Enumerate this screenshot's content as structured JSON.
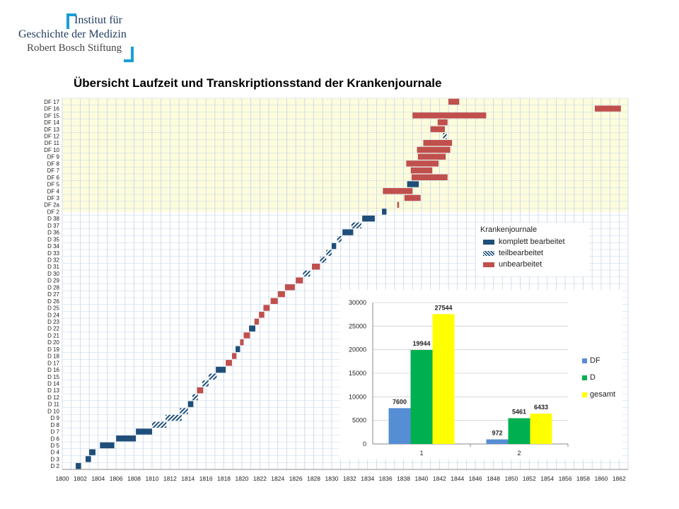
{
  "logo": {
    "line1": "Institut für",
    "line2": "Geschichte der Medizin",
    "line3": "Robert Bosch Stiftung"
  },
  "title": "Übersicht Laufzeit und Transkriptionsstand der Krankenjournale",
  "legend": {
    "title": "Krankenjournale",
    "items": [
      {
        "label": "komplett bearbeitet",
        "key": "complete"
      },
      {
        "label": "teilbearbeitet",
        "key": "partial"
      },
      {
        "label": "unbearbeitet",
        "key": "open"
      }
    ]
  },
  "colors": {
    "complete": "#1f4e79",
    "partial": "#1f4e79",
    "open": "#c0504d",
    "df_background": "#fdfcdc",
    "grid": "#c5d5e8",
    "series_df": "#558ed5",
    "series_d": "#00b050",
    "series_gesamt": "#ffff00"
  },
  "chart_data": [
    {
      "type": "bar",
      "subtype": "gantt",
      "title": "Übersicht Laufzeit und Transkriptionsstand der Krankenjournale",
      "x_ticks": [
        1800,
        1802,
        1804,
        1806,
        1808,
        1810,
        1812,
        1814,
        1816,
        1818,
        1820,
        1822,
        1824,
        1826,
        1828,
        1830,
        1832,
        1834,
        1836,
        1838,
        1840,
        1842,
        1844,
        1846,
        1848,
        1850,
        1852,
        1854,
        1856,
        1858,
        1860,
        1862
      ],
      "xlim": [
        1800,
        1863
      ],
      "grid": true,
      "legend_position": "right",
      "rows": [
        {
          "label": "DF 17",
          "start": 1843.0,
          "end": 1844.2,
          "status": "open"
        },
        {
          "label": "DF 16",
          "start": 1859.3,
          "end": 1862.2,
          "status": "open"
        },
        {
          "label": "DF 15",
          "start": 1839.0,
          "end": 1847.2,
          "status": "open"
        },
        {
          "label": "DF 14",
          "start": 1841.8,
          "end": 1842.9,
          "status": "open"
        },
        {
          "label": "DF 13",
          "start": 1841.0,
          "end": 1842.6,
          "status": "open"
        },
        {
          "label": "DF 12",
          "start": 1842.4,
          "end": 1842.8,
          "status": "partial"
        },
        {
          "label": "DF 11",
          "start": 1840.2,
          "end": 1843.4,
          "status": "open"
        },
        {
          "label": "DF 10",
          "start": 1839.5,
          "end": 1843.2,
          "status": "open"
        },
        {
          "label": "DF 9",
          "start": 1839.6,
          "end": 1842.7,
          "status": "open"
        },
        {
          "label": "DF 8",
          "start": 1838.3,
          "end": 1841.9,
          "status": "open"
        },
        {
          "label": "DF 7",
          "start": 1838.8,
          "end": 1841.2,
          "status": "open"
        },
        {
          "label": "DF 6",
          "start": 1838.9,
          "end": 1842.9,
          "status": "open"
        },
        {
          "label": "DF 5",
          "start": 1838.4,
          "end": 1839.7,
          "status": "complete"
        },
        {
          "label": "DF 4",
          "start": 1835.7,
          "end": 1839.0,
          "status": "open"
        },
        {
          "label": "DF 3",
          "start": 1838.1,
          "end": 1839.9,
          "status": "open"
        },
        {
          "label": "DF 2a",
          "start": 1837.3,
          "end": 1837.5,
          "status": "open"
        },
        {
          "label": "DF 2",
          "start": 1835.6,
          "end": 1836.1,
          "status": "complete"
        },
        {
          "label": "D 38",
          "start": 1833.4,
          "end": 1834.8,
          "status": "complete"
        },
        {
          "label": "D 37",
          "start": 1832.2,
          "end": 1833.3,
          "status": "partial"
        },
        {
          "label": "D 36",
          "start": 1831.2,
          "end": 1832.4,
          "status": "complete"
        },
        {
          "label": "D 35",
          "start": 1830.6,
          "end": 1831.1,
          "status": "partial"
        },
        {
          "label": "D 34",
          "start": 1830.0,
          "end": 1830.5,
          "status": "complete"
        },
        {
          "label": "D 33",
          "start": 1829.4,
          "end": 1830.0,
          "status": "partial"
        },
        {
          "label": "D 32",
          "start": 1828.7,
          "end": 1829.4,
          "status": "partial"
        },
        {
          "label": "D 31",
          "start": 1827.8,
          "end": 1828.7,
          "status": "open"
        },
        {
          "label": "D 30",
          "start": 1826.8,
          "end": 1827.6,
          "status": "partial"
        },
        {
          "label": "D 29",
          "start": 1826.0,
          "end": 1826.8,
          "status": "open"
        },
        {
          "label": "D 28",
          "start": 1824.8,
          "end": 1825.9,
          "status": "open"
        },
        {
          "label": "D 27",
          "start": 1824.0,
          "end": 1824.8,
          "status": "open"
        },
        {
          "label": "D 26",
          "start": 1823.2,
          "end": 1824.0,
          "status": "open"
        },
        {
          "label": "D 25",
          "start": 1822.4,
          "end": 1823.1,
          "status": "open"
        },
        {
          "label": "D 24",
          "start": 1821.9,
          "end": 1822.5,
          "status": "open"
        },
        {
          "label": "D 23",
          "start": 1821.4,
          "end": 1821.9,
          "status": "open"
        },
        {
          "label": "D 22",
          "start": 1820.8,
          "end": 1821.5,
          "status": "complete"
        },
        {
          "label": "D 21",
          "start": 1820.2,
          "end": 1820.9,
          "status": "open"
        },
        {
          "label": "D 20",
          "start": 1819.8,
          "end": 1820.2,
          "status": "open"
        },
        {
          "label": "D 19",
          "start": 1819.3,
          "end": 1819.8,
          "status": "complete"
        },
        {
          "label": "D 18",
          "start": 1818.9,
          "end": 1819.4,
          "status": "open"
        },
        {
          "label": "D 17",
          "start": 1818.2,
          "end": 1818.9,
          "status": "open"
        },
        {
          "label": "D 16",
          "start": 1817.1,
          "end": 1818.2,
          "status": "complete"
        },
        {
          "label": "D 15",
          "start": 1816.3,
          "end": 1817.2,
          "status": "partial"
        },
        {
          "label": "D 14",
          "start": 1815.6,
          "end": 1816.3,
          "status": "partial"
        },
        {
          "label": "D 13",
          "start": 1815.0,
          "end": 1815.7,
          "status": "open"
        },
        {
          "label": "D 12",
          "start": 1814.5,
          "end": 1815.1,
          "status": "partial"
        },
        {
          "label": "D 11",
          "start": 1814.0,
          "end": 1814.6,
          "status": "complete"
        },
        {
          "label": "D 10",
          "start": 1813.1,
          "end": 1814.0,
          "status": "partial"
        },
        {
          "label": "D 9",
          "start": 1811.5,
          "end": 1813.3,
          "status": "partial"
        },
        {
          "label": "D 8",
          "start": 1810.0,
          "end": 1811.6,
          "status": "partial"
        },
        {
          "label": "D 7",
          "start": 1808.2,
          "end": 1810.0,
          "status": "complete"
        },
        {
          "label": "D 6",
          "start": 1806.0,
          "end": 1808.2,
          "status": "complete"
        },
        {
          "label": "D 5",
          "start": 1804.2,
          "end": 1805.8,
          "status": "complete"
        },
        {
          "label": "D 4",
          "start": 1803.0,
          "end": 1803.7,
          "status": "complete"
        },
        {
          "label": "D 3",
          "start": 1802.6,
          "end": 1803.2,
          "status": "complete"
        },
        {
          "label": "D 2",
          "start": 1801.5,
          "end": 1802.1,
          "status": "complete"
        }
      ]
    },
    {
      "type": "bar",
      "categories": [
        "1",
        "2"
      ],
      "series": [
        {
          "name": "DF",
          "values": [
            7600,
            972
          ]
        },
        {
          "name": "D",
          "values": [
            19944,
            5461
          ]
        },
        {
          "name": "gesamt",
          "values": [
            27544,
            6433
          ]
        }
      ],
      "y_ticks": [
        0,
        5000,
        10000,
        15000,
        20000,
        25000,
        30000
      ],
      "ylim": [
        0,
        30000
      ],
      "grid": true,
      "legend_position": "right"
    }
  ]
}
